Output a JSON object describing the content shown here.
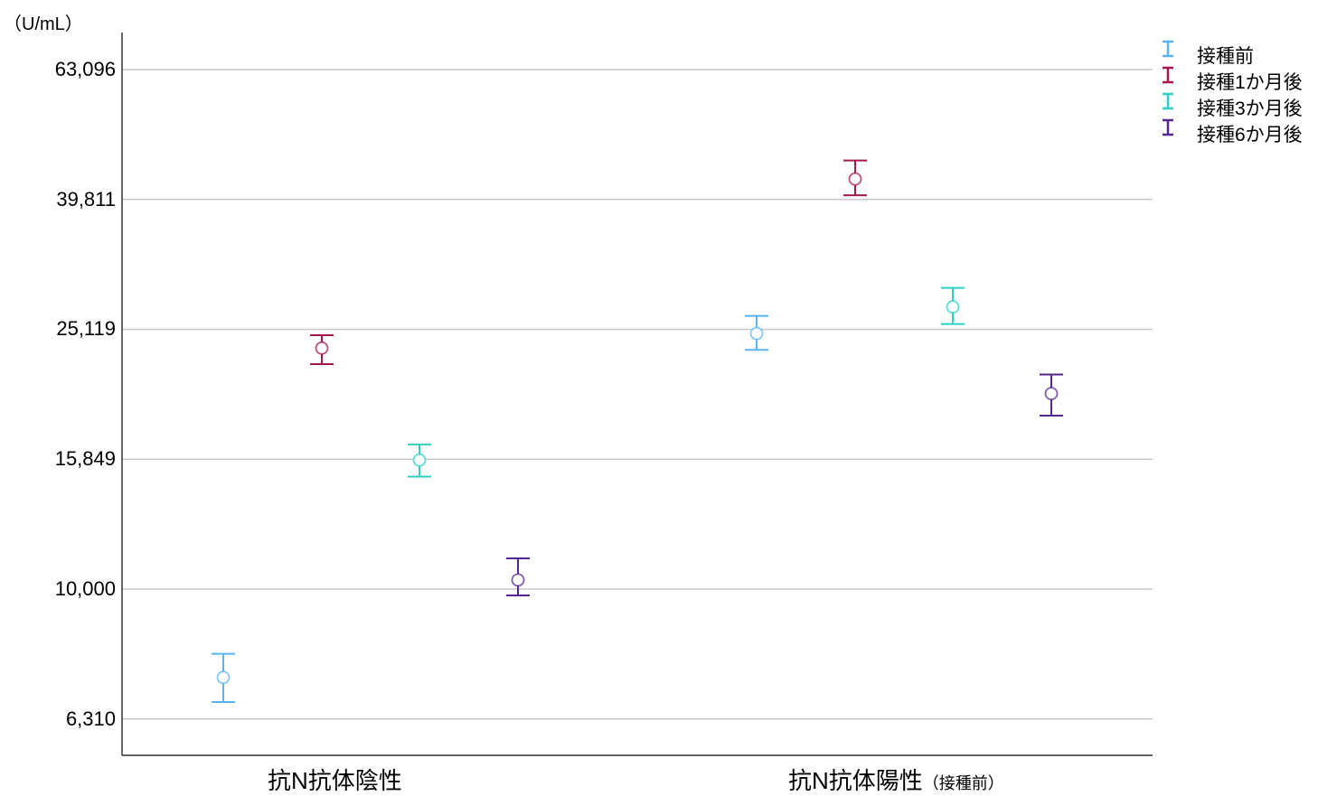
{
  "chart_data": {
    "type": "scatter",
    "unit_label": "（U/mL）",
    "y_scale": "log",
    "ylim": [
      5800,
      72000
    ],
    "y_ticks": [
      "63,096",
      "39,811",
      "25,119",
      "15,849",
      "10,000",
      "6,310"
    ],
    "y_tick_values": [
      63096,
      39811,
      25119,
      15849,
      10000,
      6310
    ],
    "grid": true,
    "legend_position": "top-right",
    "categories": [
      {
        "main": "抗N抗体陰性",
        "sub": ""
      },
      {
        "main": "抗N抗体陽性",
        "sub": "（接種前）"
      }
    ],
    "series": [
      {
        "name": "接種前",
        "color": "#5ab4f0",
        "points": [
          {
            "category": "抗N抗体陰性",
            "y": 7310,
            "low": 6700,
            "high": 7950
          },
          {
            "category": "抗N抗体陽性（接種前）",
            "y": 24750,
            "low": 23350,
            "high": 26350
          }
        ]
      },
      {
        "name": "接種1か月後",
        "color": "#a6174d",
        "points": [
          {
            "category": "抗N抗体陰性",
            "y": 23500,
            "low": 22200,
            "high": 24600
          },
          {
            "category": "抗N抗体陽性（接種前）",
            "y": 42800,
            "low": 40400,
            "high": 45700
          }
        ]
      },
      {
        "name": "接種3か月後",
        "color": "#2ecfc4",
        "points": [
          {
            "category": "抗N抗体陰性",
            "y": 15800,
            "low": 14900,
            "high": 16700
          },
          {
            "category": "抗N抗体陽性（接種前）",
            "y": 27200,
            "low": 25600,
            "high": 29100
          }
        ]
      },
      {
        "name": "接種6か月後",
        "color": "#54278f",
        "points": [
          {
            "category": "抗N抗体陰性",
            "y": 10330,
            "low": 9780,
            "high": 11150
          },
          {
            "category": "抗N抗体陽性（接種前）",
            "y": 20000,
            "low": 18500,
            "high": 21400
          }
        ]
      }
    ]
  }
}
